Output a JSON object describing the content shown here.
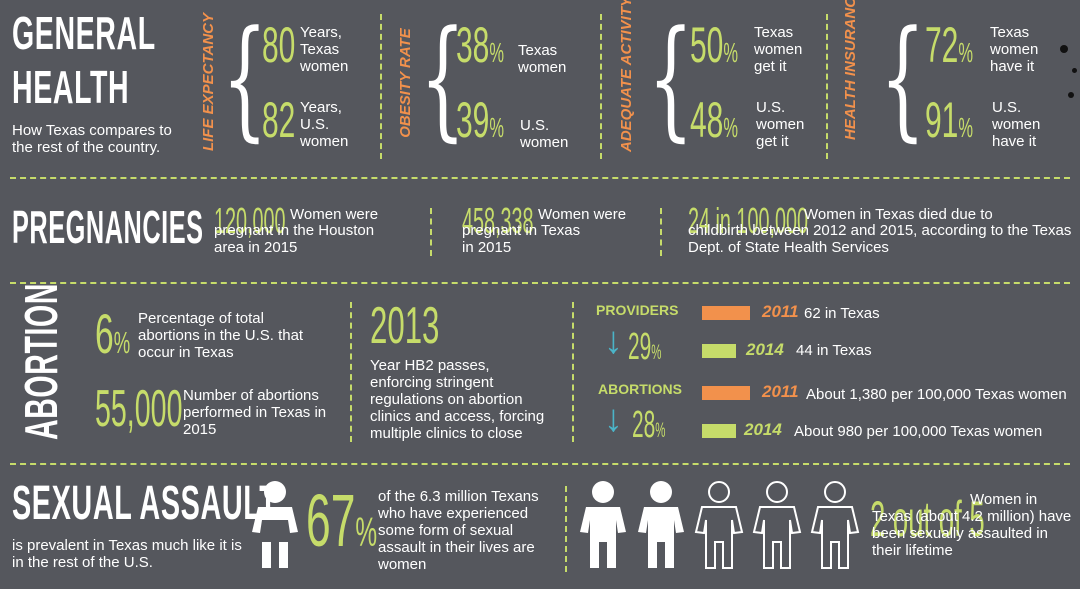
{
  "general": {
    "title_line1": "GENERAL",
    "title_line2": "HEALTH",
    "subtitle": "How Texas compares to the rest of the country.",
    "stats": [
      {
        "label": "LIFE EXPECTANCY",
        "v1": "80",
        "t1": "Years, Texas women",
        "v2": "82",
        "t2": "Years, U.S. women"
      },
      {
        "label": "OBESITY RATE",
        "v1": "38",
        "t1": "Texas women",
        "v2": "39",
        "t2": "U.S. women"
      },
      {
        "label": "ADEQUATE ACTIVITY",
        "v1": "50",
        "t1": "Texas women get it",
        "v2": "48",
        "t2": "U.S. women get it"
      },
      {
        "label": "HEALTH INSURANCE",
        "v1": "72",
        "t1": "Texas women have it",
        "v2": "91",
        "t2": "U.S. women have it"
      }
    ],
    "pct": "%"
  },
  "pregnancies": {
    "title": "PREGNANCIES",
    "items": [
      {
        "value": "120,000",
        "text1": "Women were",
        "text2": "pregnant in the Houston area in 2015"
      },
      {
        "value": "458,338",
        "text1": "Women were",
        "text2": "pregnant in Texas in 2015"
      },
      {
        "value": "24 in 100,000",
        "text1": "Women in Texas died due to",
        "text2": "childbirth between 2012 and 2015, according to the Texas Dept. of State Health Services"
      }
    ]
  },
  "abortion": {
    "title": "ABORTION",
    "pct_value": "6",
    "pct_text": "Percentage of total abortions in the U.S. that occur in Texas",
    "count_value": "55,000",
    "count_text": "Number of abortions performed in Texas in 2015",
    "year_value": "2013",
    "year_text": "Year HB2 passes, enforcing stringent regulations on abortion clinics and access, forcing multiple clinics to close",
    "providers": {
      "label": "PROVIDERS",
      "change": "29",
      "rows": [
        {
          "year": "2011",
          "text": "62 in Texas"
        },
        {
          "year": "2014",
          "text": "44 in Texas"
        }
      ]
    },
    "abortions": {
      "label": "ABORTIONS",
      "change": "28",
      "rows": [
        {
          "year": "2011",
          "text": "About 1,380 per 100,000 Texas women"
        },
        {
          "year": "2014",
          "text": "About 980 per 100,000 Texas women"
        }
      ]
    }
  },
  "assault": {
    "title": "SEXUAL ASSAULT",
    "subtitle": "is prevalent in Texas much like it is in the rest of the U.S.",
    "pct_value": "67",
    "pct_text": "of the 6.3 million Texans who have experienced some form of sexual assault in their lives are women",
    "ratio_value": "2 out of 5",
    "ratio_text": "Women in Texas (about 4.2 million) have been sexually assaulted in their lifetime"
  },
  "colors": {
    "background": "#55575d",
    "green": "#c6dc6a",
    "orange": "#f2914c",
    "arrow": "#4bb4c8"
  }
}
